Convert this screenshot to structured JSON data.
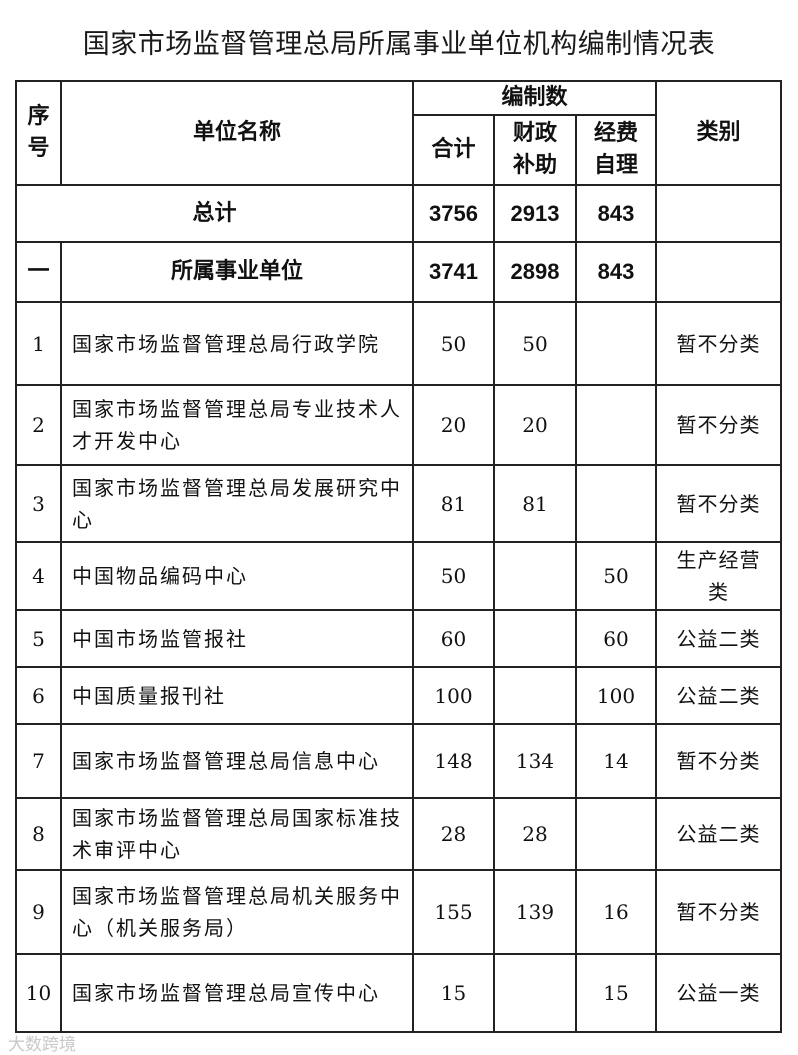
{
  "title": "国家市场监督管理总局所属事业单位机构编制情况表",
  "headers": {
    "seq": "序号",
    "name": "单位名称",
    "quota": "编制数",
    "total": "合计",
    "fiscal": "财政补助",
    "self": "经费自理",
    "category": "类别"
  },
  "grand_total": {
    "label": "总计",
    "total": "3756",
    "fiscal": "2913",
    "self": "843",
    "category": ""
  },
  "section": {
    "seq": "一",
    "label": "所属事业单位",
    "total": "3741",
    "fiscal": "2898",
    "self": "843",
    "category": ""
  },
  "rows": [
    {
      "seq": "1",
      "name": "国家市场监督管理总局行政学院",
      "total": "50",
      "fiscal": "50",
      "self": "",
      "category": "暂不分类"
    },
    {
      "seq": "2",
      "name": "国家市场监督管理总局专业技术人才开发中心",
      "total": "20",
      "fiscal": "20",
      "self": "",
      "category": "暂不分类"
    },
    {
      "seq": "3",
      "name": "国家市场监督管理总局发展研究中心",
      "total": "81",
      "fiscal": "81",
      "self": "",
      "category": "暂不分类"
    },
    {
      "seq": "4",
      "name": "中国物品编码中心",
      "total": "50",
      "fiscal": "",
      "self": "50",
      "category": "生产经营类"
    },
    {
      "seq": "5",
      "name": "中国市场监管报社",
      "total": "60",
      "fiscal": "",
      "self": "60",
      "category": "公益二类"
    },
    {
      "seq": "6",
      "name": "中国质量报刊社",
      "total": "100",
      "fiscal": "",
      "self": "100",
      "category": "公益二类"
    },
    {
      "seq": "7",
      "name": "国家市场监督管理总局信息中心",
      "total": "148",
      "fiscal": "134",
      "self": "14",
      "category": "暂不分类"
    },
    {
      "seq": "8",
      "name": "国家市场监督管理总局国家标准技术审评中心",
      "total": "28",
      "fiscal": "28",
      "self": "",
      "category": "公益二类"
    },
    {
      "seq": "9",
      "name": "国家市场监督管理总局机关服务中心（机关服务局）",
      "total": "155",
      "fiscal": "139",
      "self": "16",
      "category": "暂不分类"
    },
    {
      "seq": "10",
      "name": "国家市场监督管理总局宣传中心",
      "total": "15",
      "fiscal": "",
      "self": "15",
      "category": "公益一类"
    }
  ],
  "watermark": "大数跨境"
}
